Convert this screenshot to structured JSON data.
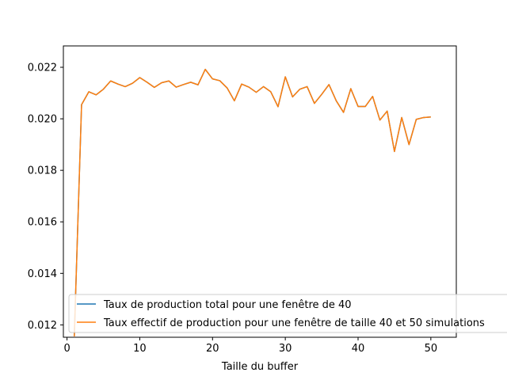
{
  "chart_data": {
    "type": "line",
    "title": "",
    "xlabel": "Taille du buffer",
    "ylabel": "",
    "xlim": [
      -0.5,
      53.5
    ],
    "ylim": [
      0.01152,
      0.02283
    ],
    "xticks": [
      0,
      10,
      20,
      30,
      40,
      50
    ],
    "xtick_labels": [
      "0",
      "10",
      "20",
      "30",
      "40",
      "50"
    ],
    "yticks": [
      0.012,
      0.014,
      0.016,
      0.018,
      0.02,
      0.022
    ],
    "ytick_labels": [
      "0.012",
      "0.014",
      "0.016",
      "0.018",
      "0.020",
      "0.022"
    ],
    "grid": false,
    "legend_position": "lower-left",
    "x": [
      1,
      2,
      3,
      4,
      5,
      6,
      7,
      8,
      9,
      10,
      11,
      12,
      13,
      14,
      15,
      16,
      17,
      18,
      19,
      20,
      21,
      22,
      23,
      24,
      25,
      26,
      27,
      28,
      29,
      30,
      31,
      32,
      33,
      34,
      35,
      36,
      37,
      38,
      39,
      40,
      41,
      42,
      43,
      44,
      45,
      46,
      47,
      48,
      49,
      50
    ],
    "series": [
      {
        "name": "Taux de production total pour une fenêtre de 40",
        "color": "#1f77b4",
        "values": [
          0.01155,
          0.02055,
          0.02105,
          0.02093,
          0.02115,
          0.02147,
          0.02135,
          0.02125,
          0.02138,
          0.0216,
          0.02142,
          0.02122,
          0.0214,
          0.02147,
          0.02123,
          0.02133,
          0.02142,
          0.02132,
          0.02192,
          0.02155,
          0.02148,
          0.0212,
          0.0207,
          0.02135,
          0.02123,
          0.02103,
          0.02125,
          0.02105,
          0.02047,
          0.02163,
          0.02085,
          0.02115,
          0.02125,
          0.0206,
          0.02095,
          0.02133,
          0.0207,
          0.02025,
          0.02117,
          0.02048,
          0.02048,
          0.02087,
          0.01995,
          0.0203,
          0.01873,
          0.02005,
          0.019,
          0.01998,
          0.02005,
          0.02007
        ]
      },
      {
        "name": "Taux effectif de production pour une fenêtre de taille 40 et 50 simulations",
        "color": "#ff7f0e",
        "values": [
          0.01155,
          0.02055,
          0.02105,
          0.02093,
          0.02115,
          0.02147,
          0.02135,
          0.02125,
          0.02138,
          0.0216,
          0.02142,
          0.02122,
          0.0214,
          0.02147,
          0.02123,
          0.02133,
          0.02142,
          0.02132,
          0.02192,
          0.02155,
          0.02148,
          0.0212,
          0.0207,
          0.02135,
          0.02123,
          0.02103,
          0.02125,
          0.02105,
          0.02047,
          0.02163,
          0.02085,
          0.02115,
          0.02125,
          0.0206,
          0.02095,
          0.02133,
          0.0207,
          0.02025,
          0.02117,
          0.02048,
          0.02048,
          0.02087,
          0.01995,
          0.0203,
          0.01873,
          0.02005,
          0.019,
          0.01998,
          0.02005,
          0.02007
        ]
      }
    ]
  }
}
